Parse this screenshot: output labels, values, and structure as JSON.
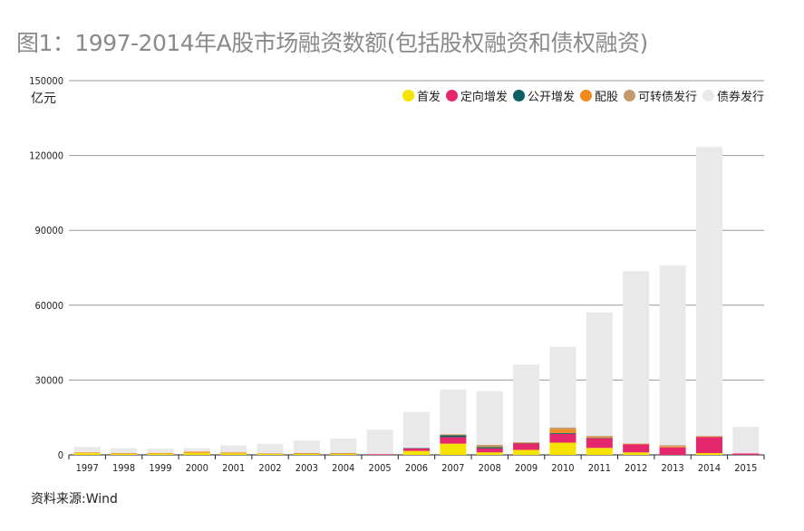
{
  "title": "图1：1997-2014年A股市场融资数额(包括股权融资和债权融资)",
  "source": "资料来源:Wind",
  "unit": "亿元",
  "chart_data": {
    "type": "bar",
    "stacked": true,
    "categories": [
      "1997",
      "1998",
      "1999",
      "2000",
      "2001",
      "2002",
      "2003",
      "2004",
      "2005",
      "2006",
      "2007",
      "2008",
      "2009",
      "2010",
      "2011",
      "2012",
      "2013",
      "2014",
      "2015"
    ],
    "ylim": [
      0,
      150000
    ],
    "yticks": [
      0,
      30000,
      60000,
      90000,
      120000,
      150000
    ],
    "grid": true,
    "legend_position": "top-right",
    "series": [
      {
        "name": "首发",
        "color": "#f5e400",
        "values": [
          700,
          400,
          500,
          800,
          600,
          500,
          450,
          350,
          0,
          1600,
          4500,
          1000,
          2000,
          4900,
          2800,
          1000,
          0,
          700,
          0
        ]
      },
      {
        "name": "定向增发",
        "color": "#e5286e",
        "values": [
          0,
          0,
          0,
          0,
          0,
          0,
          0,
          0,
          300,
          1000,
          2600,
          1600,
          2600,
          3500,
          3900,
          3300,
          3000,
          6500,
          600
        ]
      },
      {
        "name": "公开增发",
        "color": "#0e5f63",
        "values": [
          0,
          0,
          0,
          0,
          0,
          0,
          0,
          0,
          0,
          200,
          800,
          500,
          100,
          400,
          100,
          0,
          0,
          0,
          0
        ]
      },
      {
        "name": "配股",
        "color": "#f08a1c",
        "values": [
          300,
          300,
          300,
          500,
          400,
          50,
          100,
          200,
          0,
          0,
          200,
          150,
          100,
          1500,
          400,
          100,
          400,
          100,
          0
        ]
      },
      {
        "name": "可转债发行",
        "color": "#c49a6c",
        "values": [
          0,
          0,
          0,
          0,
          0,
          0,
          200,
          200,
          0,
          0,
          200,
          800,
          300,
          700,
          400,
          200,
          500,
          300,
          0
        ]
      },
      {
        "name": "债券发行",
        "color": "#e9e9e9",
        "values": [
          2200,
          2000,
          1700,
          1400,
          2800,
          3900,
          5000,
          5800,
          9800,
          14400,
          17900,
          21500,
          31100,
          32300,
          49500,
          69000,
          72000,
          115800,
          10600
        ]
      }
    ]
  }
}
